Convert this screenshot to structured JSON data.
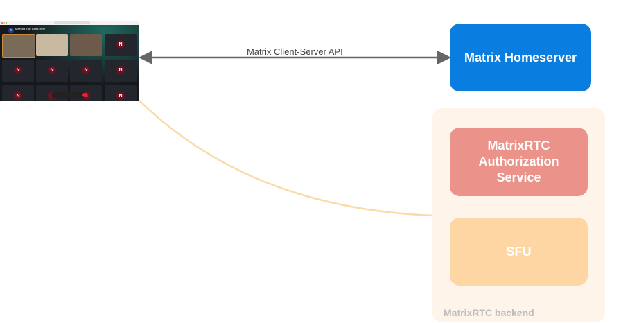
{
  "screenshot": {
    "meeting_title": "Meeting Title Goes Here",
    "avatar_letter": "M",
    "tile_letter": "N"
  },
  "edges": {
    "client_server_api": "Matrix Client-Server API"
  },
  "nodes": {
    "homeserver": "Matrix Homeserver",
    "auth_service": [
      "MatrixRTC",
      "Authorization",
      "Service"
    ],
    "sfu": "SFU",
    "backend_label": "MatrixRTC backend"
  },
  "colors": {
    "homeserver": "#0a7ee0",
    "auth_service": "#eb928a",
    "sfu": "#fdd6a4",
    "backend": "#fff4ea",
    "connector": "#fbdaa9",
    "arrow": "#666666"
  }
}
